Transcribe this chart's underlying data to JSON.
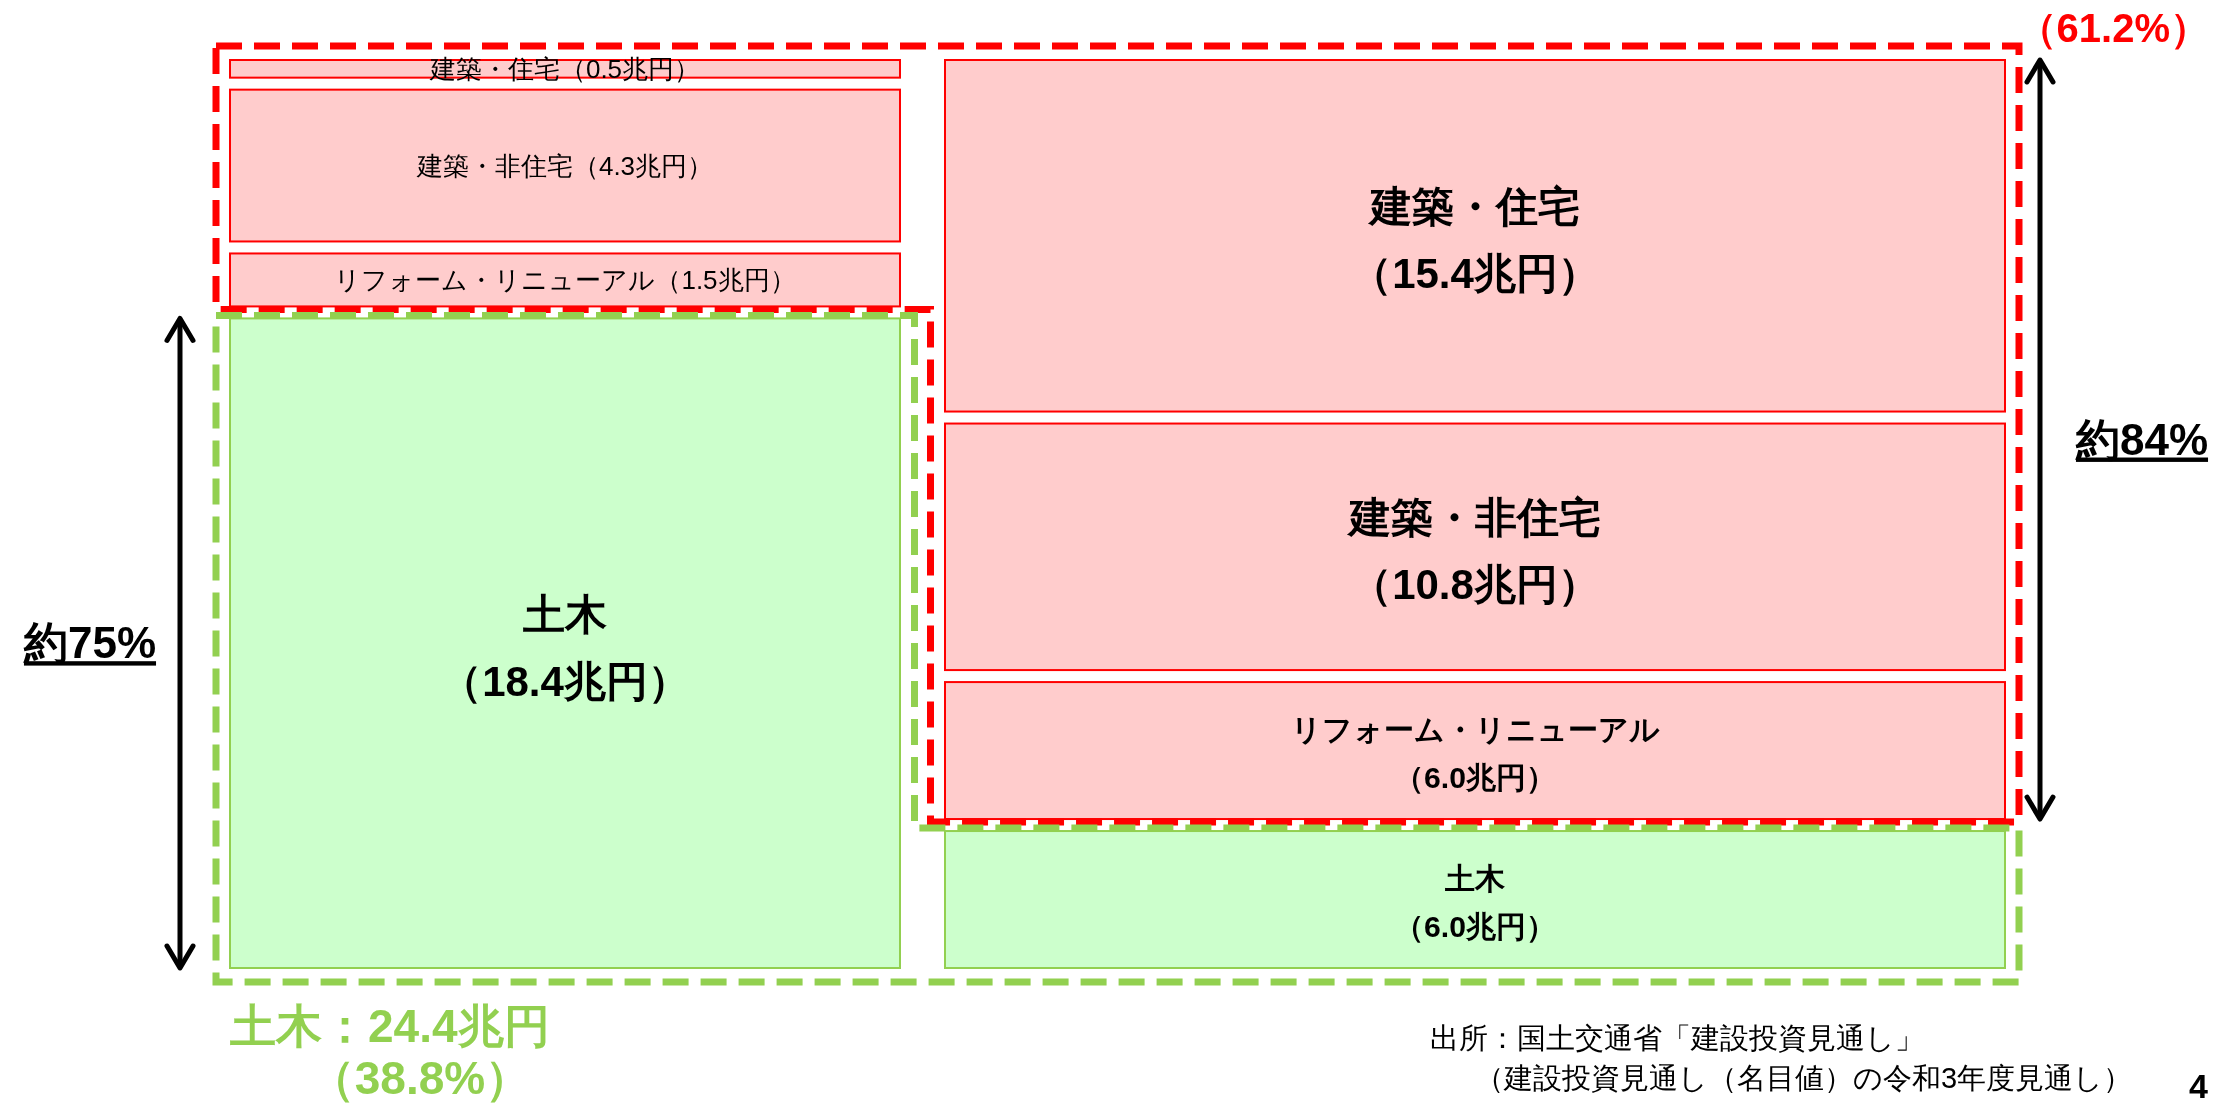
{
  "chart_data": {
    "type": "other",
    "categories": [
      "建築・住宅",
      "建築・非住宅",
      "リフォーム・リニューアル",
      "土木"
    ],
    "series": [
      {
        "values": [
          0.5,
          4.3,
          1.5,
          18.4
        ],
        "value_labels": [
          "（0.5兆円）",
          "（4.3兆円）",
          "（1.5兆円）",
          "（18.4兆円）"
        ],
        "colors": [
          "#ffcccc",
          "#ffcccc",
          "#ffcccc",
          "#ccffcc"
        ]
      },
      {
        "values": [
          15.4,
          10.8,
          6.0,
          6.0
        ],
        "value_labels": [
          "（15.4兆円）",
          "（10.8兆円）",
          "（6.0兆円）",
          "（6.0兆円）"
        ],
        "colors": [
          "#ffcccc",
          "#ffcccc",
          "#ffcccc",
          "#ccffcc"
        ]
      }
    ],
    "annotations": [
      "約75%",
      "約84%",
      "土木：24.4兆円",
      "（38.8%）",
      "（61.2%）",
      "出所：国土交通省「建設投資見通し」",
      "（建設投資見通し（名目値）の令和3年度見通し）",
      "4"
    ]
  }
}
